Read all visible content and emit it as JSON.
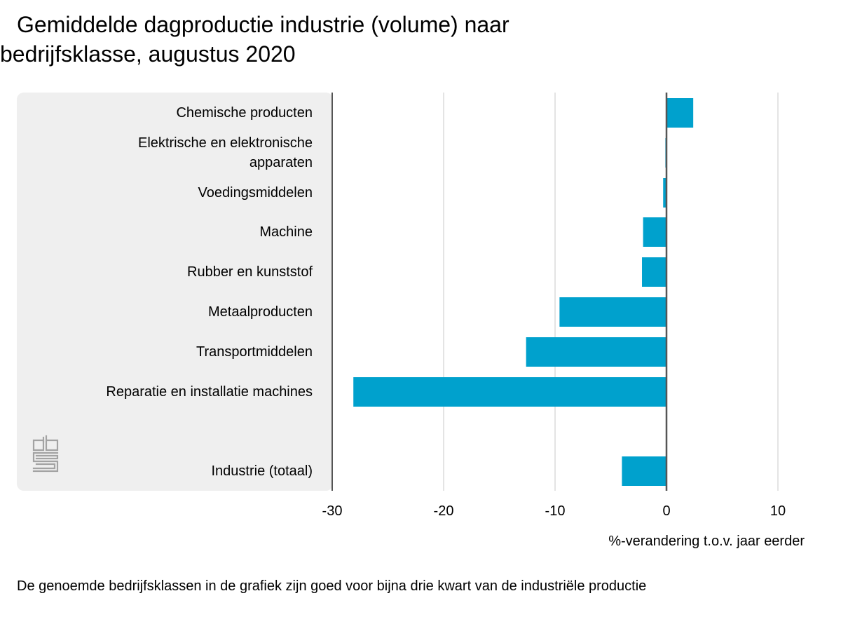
{
  "colors": {
    "bar": "#00a1cd",
    "panel": "#efefef",
    "grid": "#c8c8c8",
    "axis": "#555555",
    "logo": "#a3a3a3"
  },
  "icons": {
    "logo": "cbs-logo-icon"
  },
  "chart_data": {
    "type": "bar",
    "orientation": "horizontal",
    "title": "Gemiddelde dagproductie industrie (volume) naar bedrijfsklasse, augustus 2020",
    "xlabel": "%-verandering t.o.v. jaar eerder",
    "xlim": [
      -30,
      12.5
    ],
    "xticks": [
      "-30",
      "-20",
      "-10",
      "0",
      "10"
    ],
    "grid": "vertical",
    "categories": [
      [
        "Chemische producten"
      ],
      [
        "Elektrische en elektronische",
        "apparaten"
      ],
      [
        "Voedingsmiddelen"
      ],
      [
        "Machine"
      ],
      [
        "Rubber en kunststof"
      ],
      [
        "Metaalproducten"
      ],
      [
        "Transportmiddelen"
      ],
      [
        "Reparatie en installatie machines"
      ],
      [
        "Industrie (totaal)"
      ]
    ],
    "values": [
      2.4,
      -0.1,
      -0.3,
      -2.1,
      -2.2,
      -9.6,
      -12.6,
      -28.1,
      -4.0
    ]
  },
  "footnote": "De genoemde bedrijfsklassen in de grafiek zijn goed voor bijna drie kwart van de industriële productie"
}
